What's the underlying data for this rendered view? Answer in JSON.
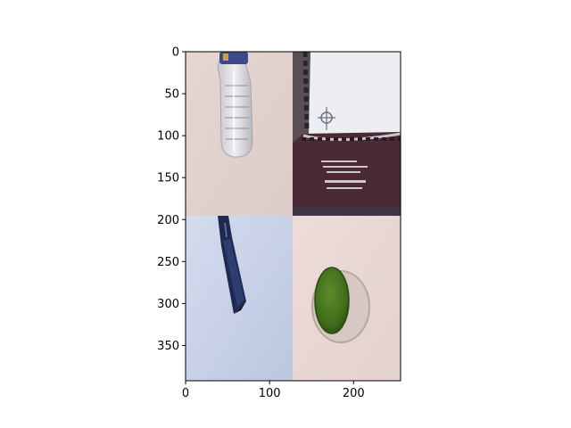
{
  "figure": {
    "background": "#ffffff",
    "axes": {
      "image_extent": {
        "x": [
          0,
          256
        ],
        "y": [
          0,
          392
        ]
      },
      "x_ticks": [
        {
          "value": 0,
          "label": "0"
        },
        {
          "value": 100,
          "label": "100"
        },
        {
          "value": 200,
          "label": "200"
        }
      ],
      "y_ticks": [
        {
          "value": 0,
          "label": "0"
        },
        {
          "value": 50,
          "label": "50"
        },
        {
          "value": 100,
          "label": "100"
        },
        {
          "value": 150,
          "label": "150"
        },
        {
          "value": 200,
          "label": "200"
        },
        {
          "value": 250,
          "label": "250"
        },
        {
          "value": 300,
          "label": "300"
        },
        {
          "value": 350,
          "label": "350"
        }
      ]
    },
    "tiles": [
      {
        "name": "plastic-bottle",
        "background": "#e3d3d0"
      },
      {
        "name": "carton-box",
        "background": "#ecedf2"
      },
      {
        "name": "dark-glass-bottle",
        "background": "#c8d2e6"
      },
      {
        "name": "green-jar-lid",
        "background": "#e9d8d6"
      }
    ]
  }
}
